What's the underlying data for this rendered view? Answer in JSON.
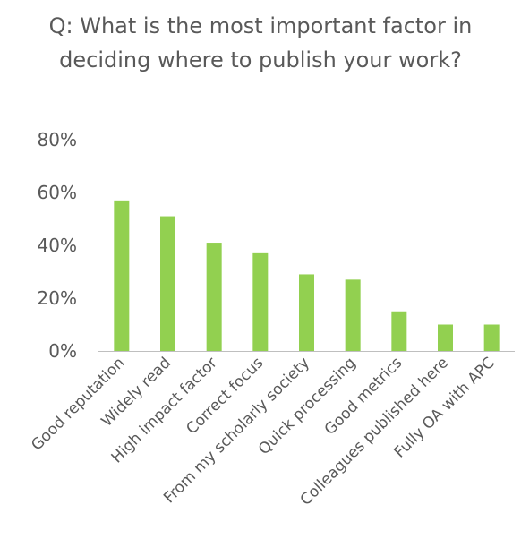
{
  "chart_data": {
    "type": "bar",
    "title": "Q: What is the most important factor in deciding where to publish your work?",
    "xlabel": "",
    "ylabel": "",
    "categories": [
      "Good reputation",
      "Widely read",
      "High impact factor",
      "Correct focus",
      "From my scholarly society",
      "Quick processing",
      "Good metrics",
      "Colleagues published here",
      "Fully OA with APC"
    ],
    "values": [
      57,
      51,
      41,
      37,
      29,
      27,
      15,
      10,
      10
    ],
    "value_unit": "%",
    "ylim": [
      0,
      80
    ],
    "yticks": [
      0,
      20,
      40,
      60,
      80
    ],
    "ytick_labels": [
      "0%",
      "20%",
      "40%",
      "60%",
      "80%"
    ],
    "grid": false,
    "legend": "none",
    "bar_color": "#92d050",
    "axis_color": "#bfbfbf"
  }
}
